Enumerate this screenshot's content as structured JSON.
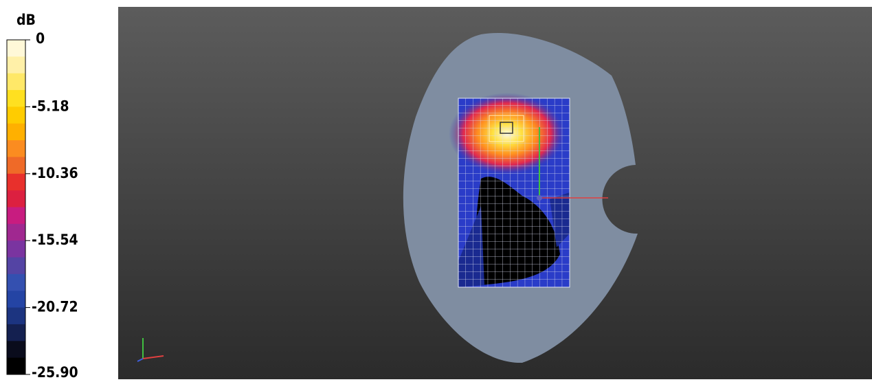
{
  "colorbar": {
    "unit": "dB",
    "ticks": [
      "0",
      "-5.18",
      "-10.36",
      "-15.54",
      "-20.72",
      "-25.90"
    ]
  }
}
